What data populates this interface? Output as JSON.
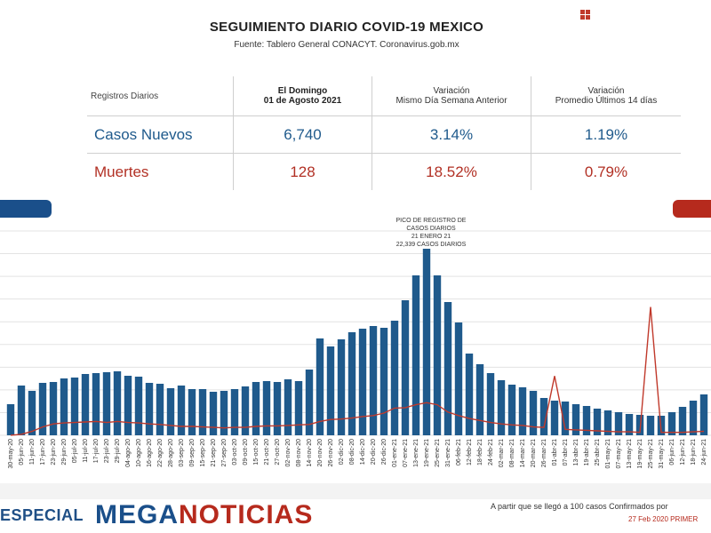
{
  "header": {
    "title": "SEGUIMIENTO DIARIO COVID-19 MEXICO",
    "subtitle": "Fuente: Tablero General CONACYT. Coronavirus.gob.mx"
  },
  "table": {
    "headers": [
      "Registros Diarios",
      "El Domingo\n01 de Agosto 2021",
      "Variación\nMismo Día Semana Anterior",
      "Variación\nPromedio Últimos 14 días"
    ],
    "rows": [
      {
        "label": "Casos Nuevos",
        "value": "6,740",
        "var_week": "3.14%",
        "var_14": "1.19%"
      },
      {
        "label": "Muertes",
        "value": "128",
        "var_week": "18.52%",
        "var_14": "0.79%"
      }
    ]
  },
  "annotation": {
    "lines": [
      "PICO DE REGISTRO DE",
      "CASOS DIARIOS",
      "21 ENERO 21",
      "22,339 CASOS DIARIOS"
    ]
  },
  "footer": {
    "especial": "ESPECIAL",
    "brand_part1": "MEGA",
    "brand_part2": "NOTICIAS",
    "note": "A partir que se llegó a 100 casos Confirmados por",
    "note2": "27 Feb 2020 PRIMER"
  },
  "colors": {
    "cases": "#1f5a8c",
    "deaths": "#c0392b",
    "pill_blue": "#1a4f8a",
    "pill_red": "#b62a1d"
  },
  "chart_data": {
    "type": "bar",
    "title": "",
    "xlabel": "",
    "ylabel": "",
    "grid": true,
    "x_tick_labels": [
      "30-may-20",
      "05-jun-20",
      "11-jun-20",
      "17-jun-20",
      "23-jun-20",
      "29-jun-20",
      "05-jul-20",
      "11-jul-20",
      "17-jul-20",
      "23-jul-20",
      "29-jul-20",
      "04-ago-20",
      "10-ago-20",
      "16-ago-20",
      "22-ago-20",
      "28-ago-20",
      "03-sep-20",
      "09-sep-20",
      "15-sep-20",
      "21-sep-20",
      "27-sep-20",
      "03-oct-20",
      "09-oct-20",
      "15-oct-20",
      "21-oct-20",
      "27-oct-20",
      "02-nov-20",
      "08-nov-20",
      "14-nov-20",
      "20-nov-20",
      "26-nov-20",
      "02-dic-20",
      "08-dic-20",
      "14-dic-20",
      "20-dic-20",
      "26-dic-20",
      "01-ene-21",
      "07-ene-21",
      "13-ene-21",
      "19-ene-21",
      "25-ene-21",
      "31-ene-21",
      "06-feb-21",
      "12-feb-21",
      "18-feb-21",
      "24-feb-21",
      "02-mar-21",
      "08-mar-21",
      "14-mar-21",
      "20-mar-21",
      "26-mar-21",
      "01-abr-21",
      "07-abr-21",
      "13-abr-21",
      "19-abr-21",
      "25-abr-21",
      "01-may-21",
      "07-may-21",
      "13-may-21",
      "19-may-21",
      "25-may-21",
      "31-may-21",
      "06-jun-21",
      "12-jun-21",
      "18-jun-21",
      "24-jun-21"
    ],
    "series": [
      {
        "name": "Casos Nuevos",
        "type": "bar",
        "values": [
          3500,
          5600,
          5000,
          5900,
          6000,
          6400,
          6500,
          6900,
          7000,
          7100,
          7200,
          6700,
          6600,
          5900,
          5800,
          5300,
          5600,
          5200,
          5200,
          4900,
          5000,
          5200,
          5500,
          6000,
          6100,
          6000,
          6300,
          6100,
          7400,
          10900,
          10000,
          10800,
          11600,
          12000,
          12300,
          12100,
          12900,
          15200,
          18000,
          21000,
          18000,
          15000,
          12700,
          9200,
          8000,
          7000,
          6200,
          5700,
          5400,
          5000,
          4200,
          3900,
          3800,
          3500,
          3300,
          3000,
          2800,
          2600,
          2400,
          2300,
          2200,
          2200,
          2600,
          3200,
          3900,
          4600
        ]
      },
      {
        "name": "Muertes",
        "type": "line",
        "values": [
          1,
          20,
          80,
          170,
          230,
          250,
          260,
          270,
          280,
          260,
          280,
          260,
          250,
          230,
          220,
          200,
          180,
          180,
          170,
          160,
          150,
          160,
          160,
          180,
          190,
          190,
          200,
          210,
          220,
          280,
          320,
          330,
          350,
          380,
          400,
          450,
          550,
          560,
          620,
          660,
          620,
          470,
          400,
          340,
          300,
          260,
          230,
          210,
          200,
          170,
          160,
          1200,
          120,
          110,
          100,
          90,
          80,
          70,
          70,
          60,
          2600,
          60,
          60,
          60,
          70,
          80
        ]
      }
    ]
  }
}
